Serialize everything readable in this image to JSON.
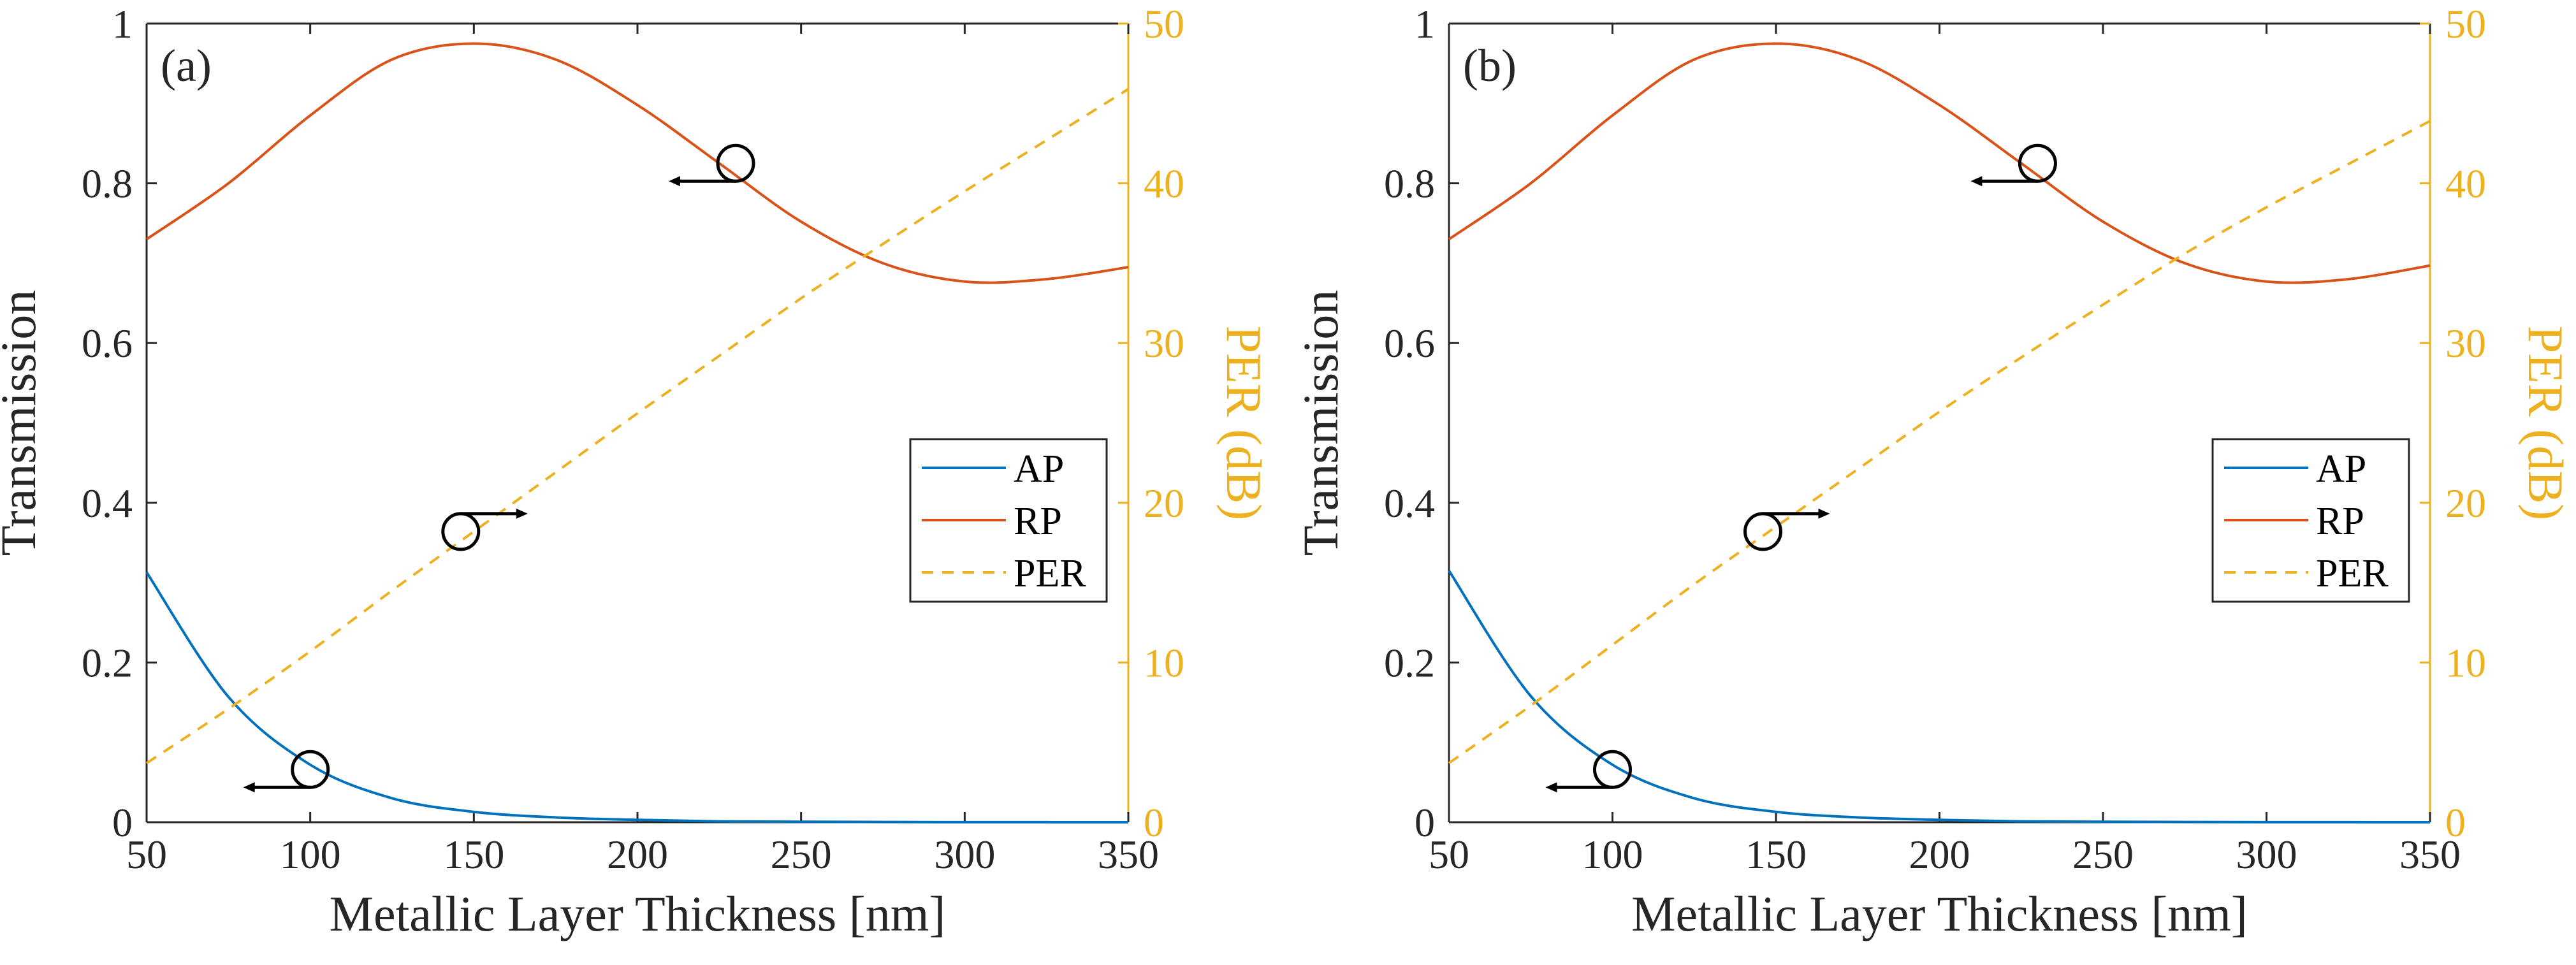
{
  "colors": {
    "ap": "#0072BD",
    "rp": "#D95319",
    "per": "#EDB120",
    "axis": "#262626"
  },
  "chart_data": [
    {
      "type": "line",
      "panel_label": "(a)",
      "xlabel": "Metallic Layer Thickness [nm]",
      "ylabel": "Transmission",
      "y2label": "PER (dB)",
      "xlim": [
        50,
        350
      ],
      "ylim": [
        0,
        1
      ],
      "y2lim": [
        0,
        50
      ],
      "x_ticks": [
        50,
        100,
        150,
        200,
        250,
        300,
        350
      ],
      "y_ticks": [
        "0",
        "0.2",
        "0.4",
        "0.6",
        "0.8",
        "1"
      ],
      "y2_ticks": [
        "0",
        "10",
        "20",
        "30",
        "40",
        "50"
      ],
      "legend": [
        "AP",
        "RP",
        "PER"
      ],
      "legend_position": "right",
      "x": [
        50,
        75,
        100,
        125,
        150,
        175,
        200,
        225,
        250,
        275,
        300,
        325,
        350
      ],
      "series": [
        {
          "name": "AP",
          "axis": "left",
          "style": "solid",
          "values": [
            0.313,
            0.157,
            0.072,
            0.03,
            0.013,
            0.006,
            0.003,
            0.001,
            0.0006,
            0.0003,
            0.0001,
            5e-05,
            3e-05
          ]
        },
        {
          "name": "RP",
          "axis": "left",
          "style": "solid",
          "values": [
            0.73,
            0.8,
            0.885,
            0.955,
            0.975,
            0.955,
            0.898,
            0.825,
            0.752,
            0.7,
            0.677,
            0.68,
            0.695
          ]
        },
        {
          "name": "PER",
          "axis": "right",
          "style": "dashed",
          "values": [
            3.7,
            7.1,
            10.7,
            14.5,
            18.2,
            21.9,
            25.6,
            29.2,
            32.8,
            36.2,
            39.5,
            42.7,
            45.9
          ]
        }
      ],
      "annotations": [
        {
          "target": "RP",
          "x": 230,
          "y": 0.825,
          "axis": "left",
          "arrow": "left"
        },
        {
          "target": "PER",
          "x": 146,
          "y": 18.2,
          "axis": "right",
          "arrow": "right"
        },
        {
          "target": "AP",
          "x": 100,
          "y": 0.066,
          "axis": "left",
          "arrow": "left"
        }
      ]
    },
    {
      "type": "line",
      "panel_label": "(b)",
      "xlabel": "Metallic Layer Thickness [nm]",
      "ylabel": "Transmission",
      "y2label": "PER (dB)",
      "xlim": [
        50,
        350
      ],
      "ylim": [
        0,
        1
      ],
      "y2lim": [
        0,
        50
      ],
      "x_ticks": [
        50,
        100,
        150,
        200,
        250,
        300,
        350
      ],
      "y_ticks": [
        "0",
        "0.2",
        "0.4",
        "0.6",
        "0.8",
        "1"
      ],
      "y2_ticks": [
        "0",
        "10",
        "20",
        "30",
        "40",
        "50"
      ],
      "legend": [
        "AP",
        "RP",
        "PER"
      ],
      "legend_position": "right",
      "x": [
        50,
        75,
        100,
        125,
        150,
        175,
        200,
        225,
        250,
        275,
        300,
        325,
        350
      ],
      "series": [
        {
          "name": "AP",
          "axis": "left",
          "style": "solid",
          "values": [
            0.315,
            0.158,
            0.072,
            0.03,
            0.013,
            0.006,
            0.003,
            0.001,
            0.0006,
            0.0003,
            0.0001,
            5e-05,
            3e-05
          ]
        },
        {
          "name": "RP",
          "axis": "left",
          "style": "solid",
          "values": [
            0.73,
            0.8,
            0.885,
            0.955,
            0.975,
            0.955,
            0.898,
            0.825,
            0.752,
            0.7,
            0.677,
            0.68,
            0.697
          ]
        },
        {
          "name": "PER",
          "axis": "right",
          "style": "dashed",
          "values": [
            3.7,
            7.3,
            11.1,
            14.9,
            18.5,
            22.1,
            25.7,
            29.1,
            32.4,
            35.6,
            38.5,
            41.2,
            43.9
          ]
        }
      ],
      "annotations": [
        {
          "target": "RP",
          "x": 230,
          "y": 0.825,
          "axis": "left",
          "arrow": "left"
        },
        {
          "target": "PER",
          "x": 146,
          "y": 18.2,
          "axis": "right",
          "arrow": "right"
        },
        {
          "target": "AP",
          "x": 100,
          "y": 0.066,
          "axis": "left",
          "arrow": "left"
        }
      ]
    }
  ]
}
